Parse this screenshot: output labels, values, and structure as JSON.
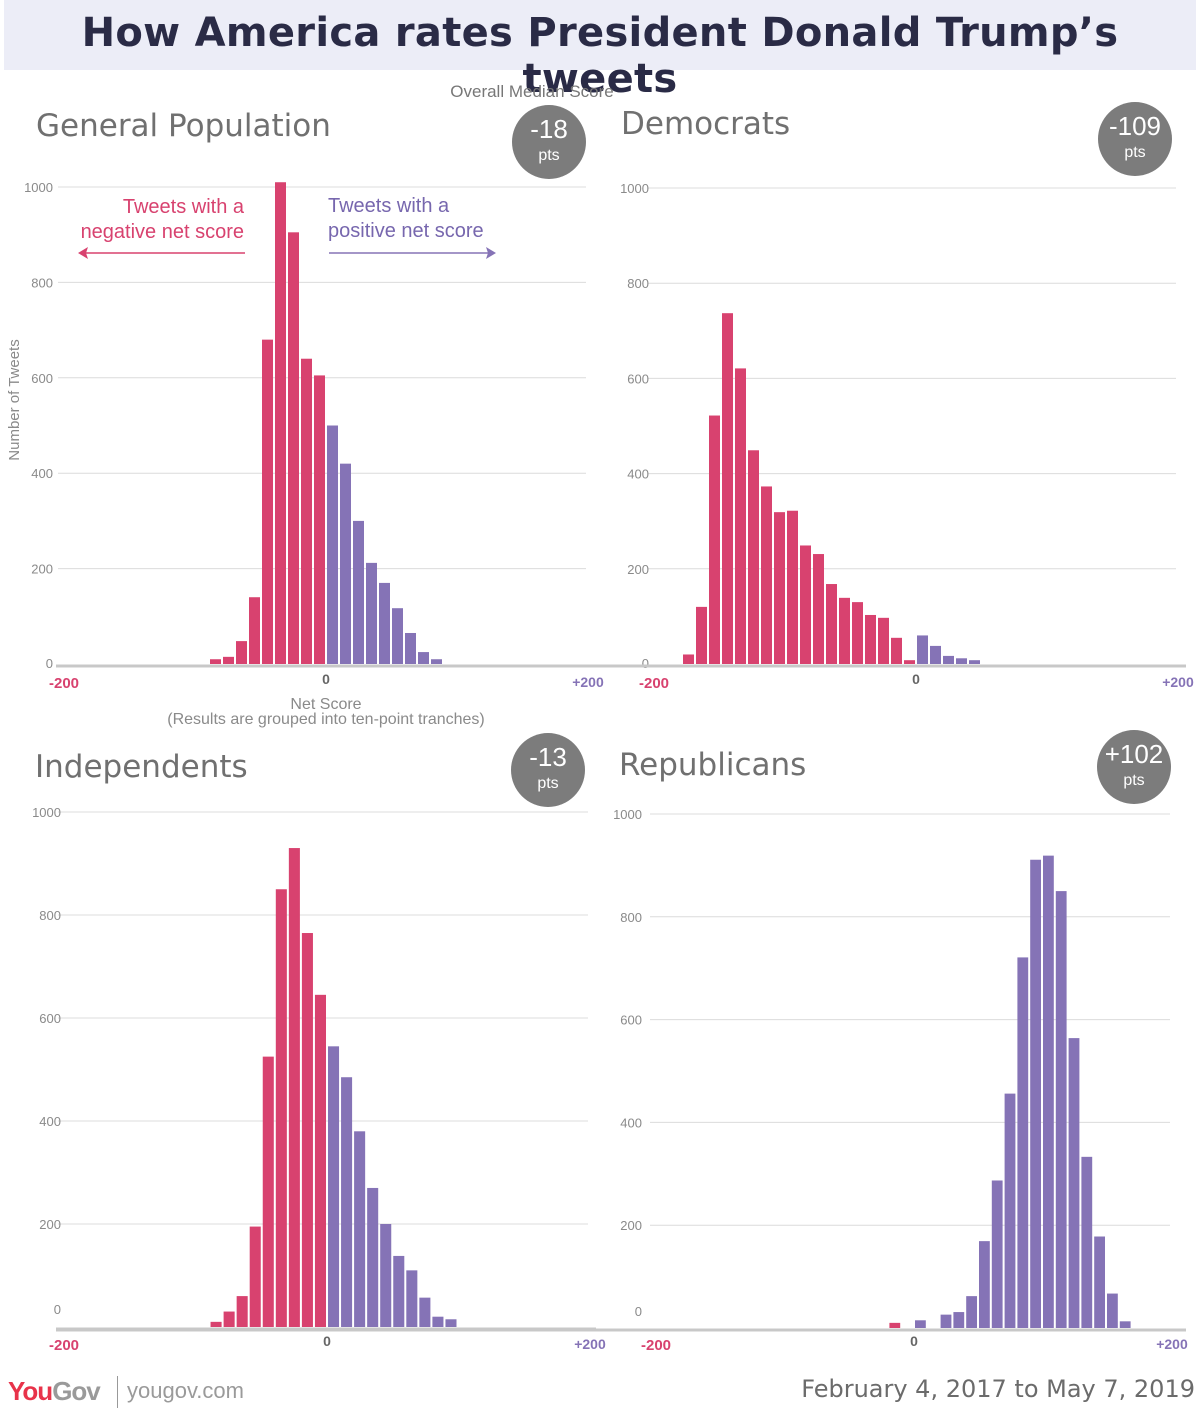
{
  "header": {
    "title": "How America rates President Donald Trump’s tweets"
  },
  "median_caption": "Overall Median Score",
  "annotations": {
    "negative": [
      "Tweets with a",
      "negative net score"
    ],
    "positive": [
      "Tweets with a",
      "positive net score"
    ]
  },
  "colors": {
    "negative": "#d8426f",
    "positive": "#8573b6",
    "badge": "#7c7c7c"
  },
  "footer": {
    "logo_you": "You",
    "logo_gov": "Gov",
    "url": "yougov.com",
    "date_range": "February 4, 2017 to May 7, 2019"
  },
  "chart_data": [
    {
      "type": "bar",
      "title": "General Population",
      "median": {
        "value": "-18",
        "unit": "pts"
      },
      "xlabel": "Net Score",
      "xlabel_sub": "(Results are grouped into ten-point tranches)",
      "ylabel": "Number of Tweets",
      "xlim": [
        -200,
        200
      ],
      "ylim": [
        0,
        1000
      ],
      "yticks": [
        "0",
        "200",
        "400",
        "600",
        "800",
        "1000"
      ],
      "xticks": [
        "-200",
        "0",
        "+200"
      ],
      "bins": [
        -90,
        -80,
        -70,
        -60,
        -50,
        -40,
        -30,
        -20,
        -10,
        0,
        10,
        20,
        30,
        40,
        50,
        60,
        70,
        80,
        90
      ],
      "values": [
        10,
        15,
        48,
        140,
        680,
        1010,
        905,
        640,
        605,
        500,
        420,
        300,
        212,
        170,
        117,
        65,
        25,
        10,
        0
      ]
    },
    {
      "type": "bar",
      "title": "Democrats",
      "median": {
        "value": "-109",
        "unit": "pts"
      },
      "xlim": [
        -200,
        200
      ],
      "ylim": [
        0,
        1000
      ],
      "yticks": [
        "0",
        "200",
        "400",
        "600",
        "800",
        "1000"
      ],
      "xticks": [
        "-200",
        "0",
        "+200"
      ],
      "bins": [
        -180,
        -170,
        -160,
        -150,
        -140,
        -130,
        -120,
        -110,
        -100,
        -90,
        -80,
        -70,
        -60,
        -50,
        -40,
        -30,
        -20,
        -10,
        0,
        10,
        20,
        30,
        40,
        50
      ],
      "values": [
        20,
        120,
        522,
        737,
        621,
        449,
        373,
        319,
        322,
        249,
        231,
        168,
        139,
        130,
        103,
        97,
        55,
        8,
        60,
        38,
        17,
        12,
        8,
        0
      ]
    },
    {
      "type": "bar",
      "title": "Independents",
      "median": {
        "value": "-13",
        "unit": "pts"
      },
      "xlim": [
        -200,
        200
      ],
      "ylim": [
        0,
        1000
      ],
      "yticks": [
        "0",
        "200",
        "400",
        "600",
        "800",
        "1000"
      ],
      "xticks": [
        "-200",
        "0",
        "+200"
      ],
      "bins": [
        -90,
        -80,
        -70,
        -60,
        -50,
        -40,
        -30,
        -20,
        -10,
        0,
        10,
        20,
        30,
        40,
        50,
        60,
        70,
        80,
        90
      ],
      "values": [
        10,
        30,
        60,
        195,
        525,
        850,
        930,
        765,
        645,
        545,
        485,
        380,
        270,
        200,
        138,
        110,
        57,
        20,
        15
      ]
    },
    {
      "type": "bar",
      "title": "Republicans",
      "median": {
        "value": "+102",
        "unit": "pts"
      },
      "xlim": [
        -200,
        200
      ],
      "ylim": [
        0,
        1000
      ],
      "yticks": [
        "0",
        "200",
        "400",
        "600",
        "800",
        "1000"
      ],
      "xticks": [
        "-200",
        "0",
        "+200"
      ],
      "bins": [
        -20,
        -10,
        0,
        10,
        20,
        30,
        40,
        50,
        60,
        70,
        80,
        90,
        100,
        110,
        120,
        130,
        140,
        150,
        160
      ],
      "values": [
        10,
        0,
        15,
        0,
        26,
        31,
        62,
        169,
        287,
        456,
        721,
        911,
        919,
        850,
        564,
        333,
        178,
        67,
        13
      ]
    }
  ]
}
